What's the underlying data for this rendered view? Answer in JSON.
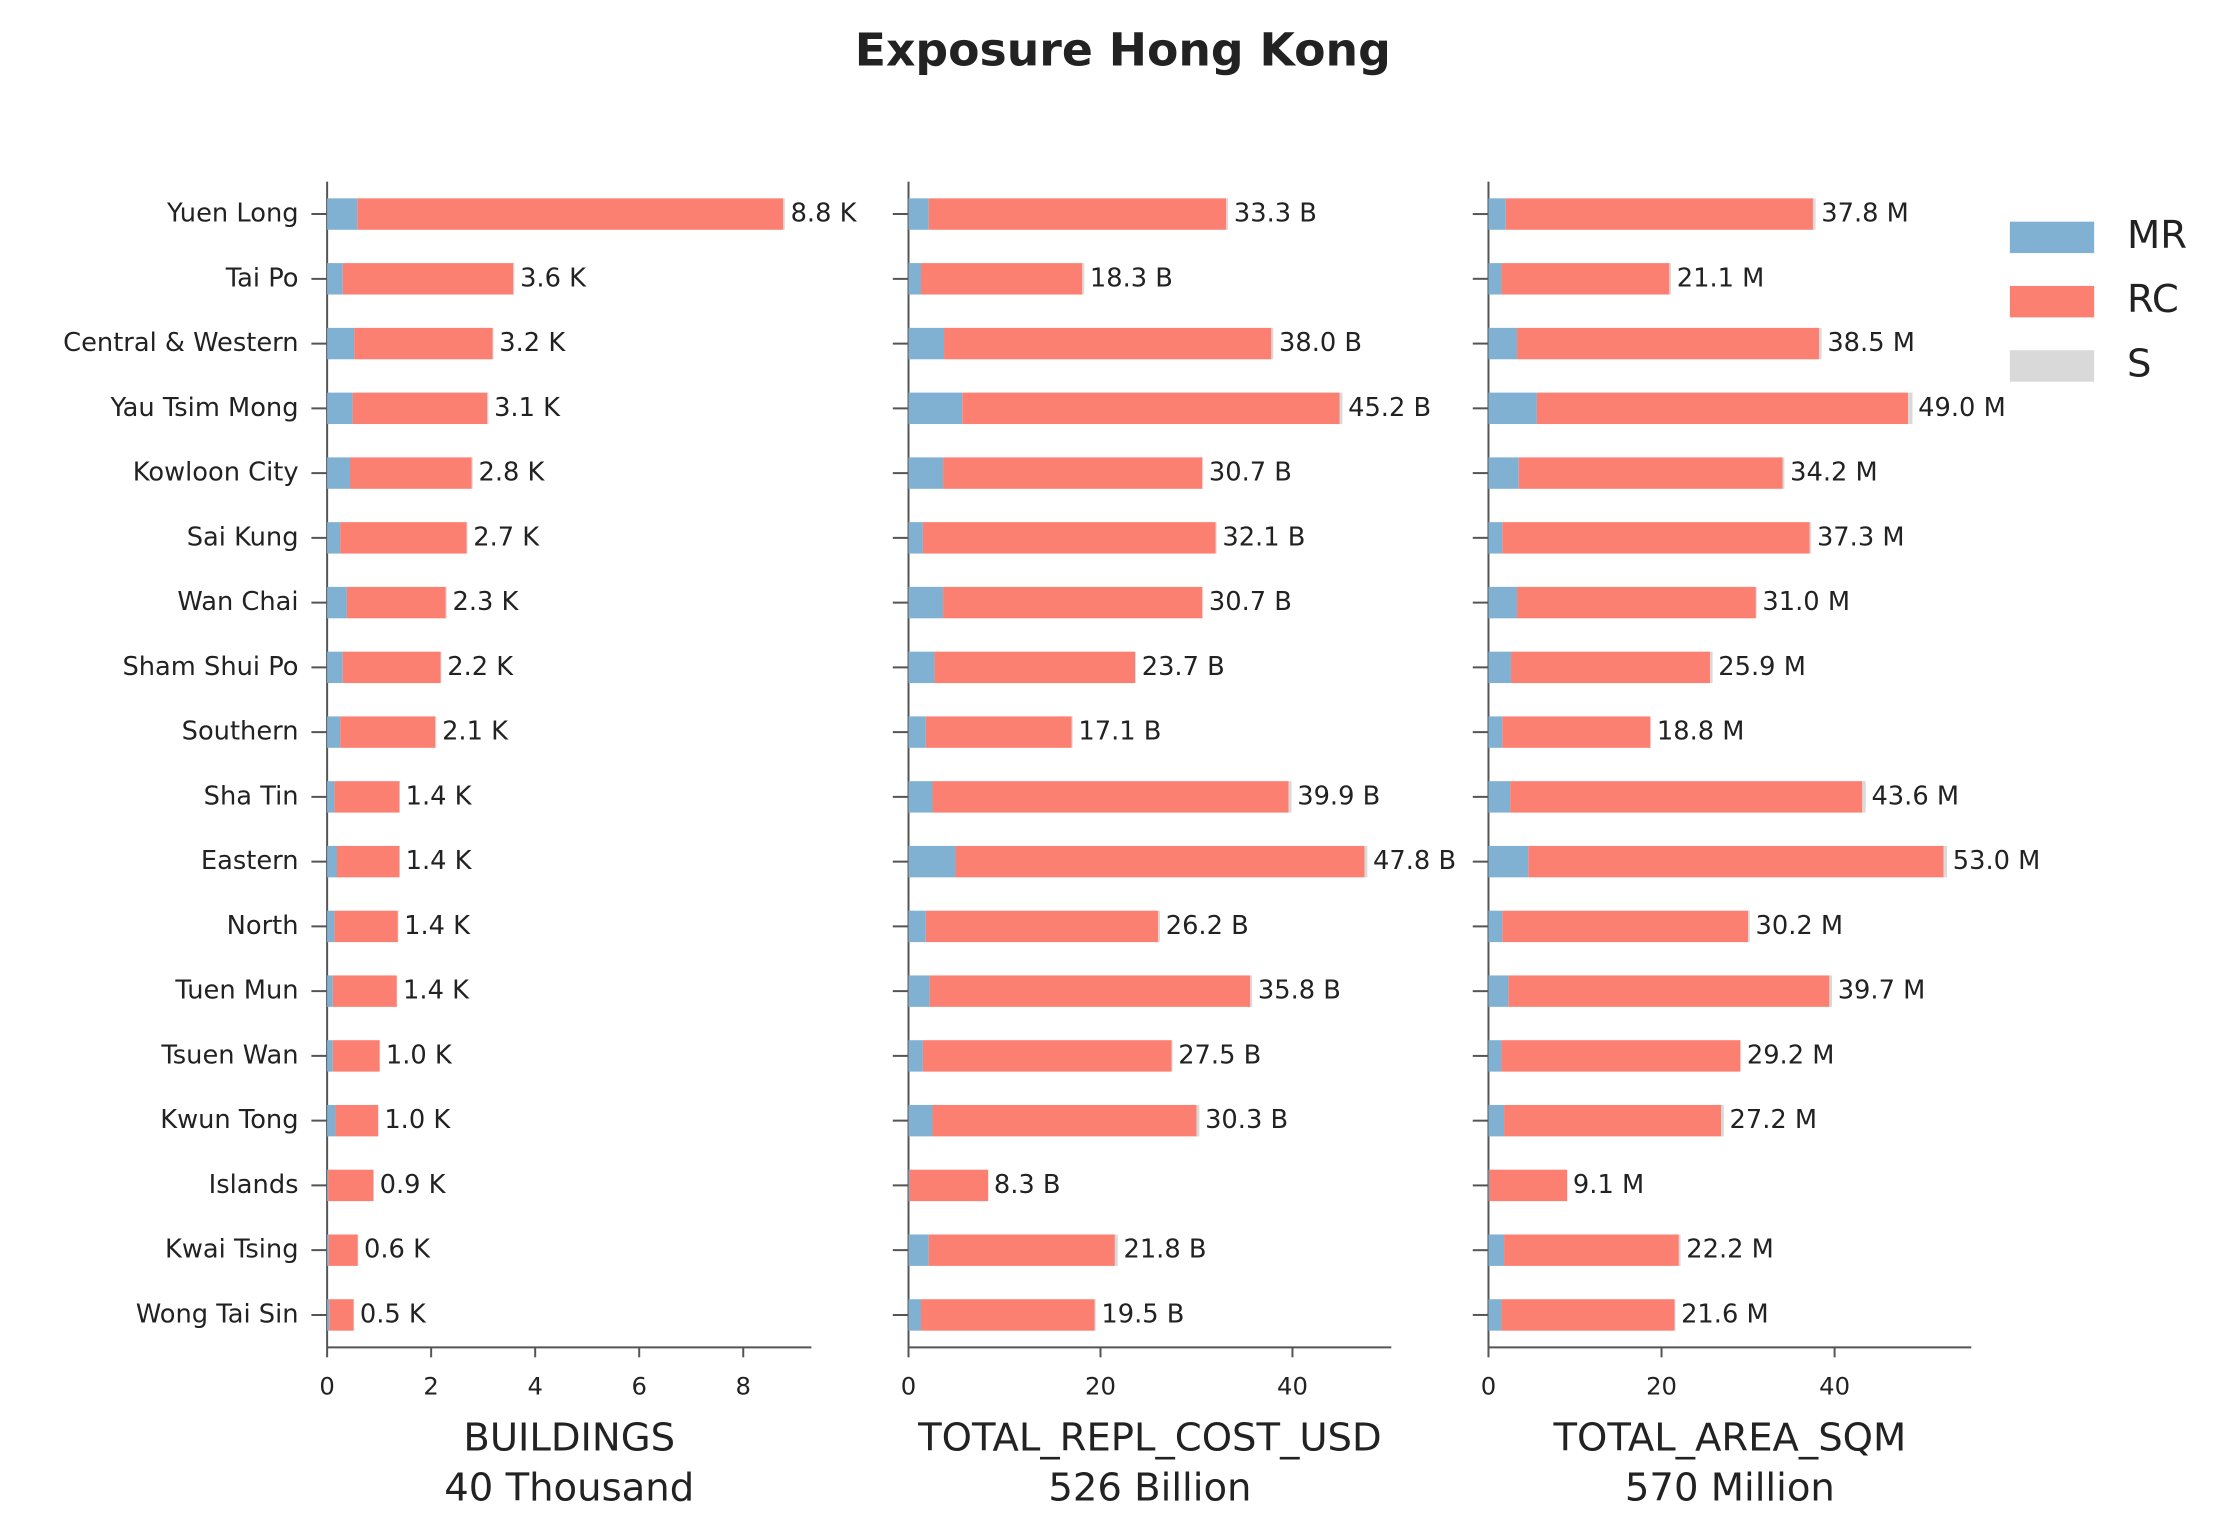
{
  "title": "Exposure Hong Kong",
  "chart_data": [
    {
      "type": "bar",
      "orientation": "horizontal",
      "xlabel": [
        "BUILDINGS",
        "40 Thousand"
      ],
      "categories": [
        "Yuen Long",
        "Tai Po",
        "Central & Western",
        "Yau Tsim Mong",
        "Kowloon City",
        "Sai Kung",
        "Wan Chai",
        "Sham Shui Po",
        "Southern",
        "Sha Tin",
        "Eastern",
        "North",
        "Tuen Mun",
        "Tsuen Wan",
        "Kwun Tong",
        "Islands",
        "Kwai Tsing",
        "Wong Tai Sin"
      ],
      "series": [
        {
          "name": "MR",
          "color": "#80b1d3",
          "values": [
            0.58,
            0.3,
            0.52,
            0.49,
            0.44,
            0.25,
            0.38,
            0.3,
            0.25,
            0.14,
            0.19,
            0.14,
            0.11,
            0.11,
            0.16,
            0.02,
            0.03,
            0.04
          ]
        },
        {
          "name": "RC",
          "color": "#fb8072",
          "values": [
            8.19,
            3.28,
            2.66,
            2.59,
            2.34,
            2.43,
            1.9,
            1.88,
            1.83,
            1.25,
            1.2,
            1.22,
            1.23,
            0.9,
            0.82,
            0.87,
            0.56,
            0.47
          ]
        },
        {
          "name": "S",
          "color": "#d9d9d9",
          "values": [
            0.03,
            0.02,
            0.02,
            0.02,
            0.02,
            0.02,
            0.02,
            0.02,
            0.02,
            0.01,
            0.01,
            0.01,
            0.01,
            0.01,
            0.01,
            0.01,
            0.01,
            0.01
          ]
        }
      ],
      "bar_labels": [
        "8.8 K",
        "3.6 K",
        "3.2 K",
        "3.1 K",
        "2.8 K",
        "2.7 K",
        "2.3 K",
        "2.2 K",
        "2.1 K",
        "1.4 K",
        "1.4 K",
        "1.4 K",
        "1.4 K",
        "1.0 K",
        "1.0 K",
        "0.9 K",
        "0.6 K",
        "0.5 K"
      ],
      "xlim": [
        0,
        9.31
      ],
      "xticks": [
        0,
        2,
        4,
        6,
        8
      ]
    },
    {
      "type": "bar",
      "orientation": "horizontal",
      "xlabel": [
        "TOTAL_REPL_COST_USD",
        "526 Billion"
      ],
      "series": [
        {
          "color": "#80b1d3",
          "values": [
            2.1,
            1.3,
            3.7,
            5.6,
            3.6,
            1.5,
            3.6,
            2.7,
            1.8,
            2.5,
            4.9,
            1.8,
            2.2,
            1.5,
            2.5,
            0.1,
            2.1,
            1.3
          ]
        },
        {
          "color": "#fb8072",
          "values": [
            31.0,
            16.8,
            34.1,
            39.3,
            27.0,
            30.5,
            27.0,
            20.9,
            15.2,
            37.1,
            42.6,
            24.2,
            33.4,
            25.9,
            27.5,
            8.2,
            19.4,
            18.1
          ]
        },
        {
          "color": "#d9d9d9",
          "values": [
            0.2,
            0.2,
            0.2,
            0.3,
            0.1,
            0.1,
            0.1,
            0.1,
            0.1,
            0.3,
            0.3,
            0.2,
            0.2,
            0.1,
            0.3,
            0.0,
            0.3,
            0.1
          ]
        }
      ],
      "bar_labels": [
        "33.3 B",
        "18.3 B",
        "38.0 B",
        "45.2 B",
        "30.7 B",
        "32.1 B",
        "30.7 B",
        "23.7 B",
        "17.1 B",
        "39.9 B",
        "47.8 B",
        "26.2 B",
        "35.8 B",
        "27.5 B",
        "30.3 B",
        "8.3 B",
        "21.8 B",
        "19.5 B"
      ],
      "xlim": [
        0,
        50.3
      ],
      "xticks": [
        0,
        20,
        40
      ]
    },
    {
      "type": "bar",
      "orientation": "horizontal",
      "xlabel": [
        "TOTAL_AREA_SQM",
        "570 Million"
      ],
      "series": [
        {
          "color": "#80b1d3",
          "values": [
            2.0,
            1.5,
            3.3,
            5.6,
            3.5,
            1.6,
            3.3,
            2.6,
            1.6,
            2.5,
            4.6,
            1.6,
            2.3,
            1.5,
            1.8,
            0.1,
            1.8,
            1.5
          ]
        },
        {
          "color": "#fb8072",
          "values": [
            35.5,
            19.4,
            34.9,
            42.9,
            30.5,
            35.5,
            27.6,
            23.0,
            17.1,
            40.7,
            48.0,
            28.4,
            37.1,
            27.6,
            25.1,
            9.0,
            20.2,
            20.0
          ]
        },
        {
          "color": "#d9d9d9",
          "values": [
            0.3,
            0.2,
            0.3,
            0.5,
            0.2,
            0.2,
            0.1,
            0.3,
            0.1,
            0.4,
            0.4,
            0.2,
            0.3,
            0.1,
            0.3,
            0.0,
            0.2,
            0.1
          ]
        }
      ],
      "bar_labels": [
        "37.8 M",
        "21.1 M",
        "38.5 M",
        "49.0 M",
        "34.2 M",
        "37.3 M",
        "31.0 M",
        "25.9 M",
        "18.8 M",
        "43.6 M",
        "53.0 M",
        "30.2 M",
        "39.7 M",
        "29.2 M",
        "27.2 M",
        "9.1 M",
        "22.2 M",
        "21.6 M"
      ],
      "xlim": [
        0,
        55.8
      ],
      "xticks": [
        0,
        20,
        40
      ]
    }
  ]
}
